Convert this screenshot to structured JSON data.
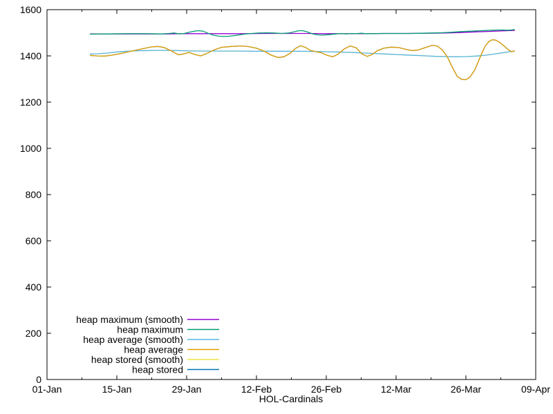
{
  "chart_data": {
    "type": "line",
    "title": "",
    "xlabel": "HOL-Cardinals",
    "ylabel": "",
    "x_unit": "days since 01-Jan",
    "xlim_days": [
      0,
      98
    ],
    "ylim": [
      0,
      1600
    ],
    "grid": false,
    "legend_position": "inside bottom-left",
    "y_ticks": [
      0,
      200,
      400,
      600,
      800,
      1000,
      1200,
      1400,
      1600
    ],
    "x_major_ticks": [
      {
        "day": 0,
        "label": "01-Jan"
      },
      {
        "day": 14,
        "label": "15-Jan"
      },
      {
        "day": 28,
        "label": "29-Jan"
      },
      {
        "day": 42,
        "label": "12-Feb"
      },
      {
        "day": 56,
        "label": "26-Feb"
      },
      {
        "day": 70,
        "label": "12-Mar"
      },
      {
        "day": 84,
        "label": "26-Mar"
      },
      {
        "day": 98,
        "label": "09-Apr"
      }
    ],
    "x_minor_ticks_days": [
      7,
      21,
      35,
      49,
      63,
      77,
      91
    ],
    "z_order": [
      4,
      5,
      2,
      3,
      0,
      1
    ],
    "series": [
      {
        "name": "heap maximum (smooth)",
        "color": "#9400d3",
        "points": [
          [
            8.6,
            1495
          ],
          [
            12,
            1495
          ],
          [
            16,
            1495
          ],
          [
            20,
            1495
          ],
          [
            24,
            1495
          ],
          [
            28,
            1496
          ],
          [
            32,
            1496
          ],
          [
            36,
            1496
          ],
          [
            40,
            1496
          ],
          [
            44,
            1497
          ],
          [
            48,
            1497
          ],
          [
            52,
            1497
          ],
          [
            56,
            1496
          ],
          [
            60,
            1496
          ],
          [
            64,
            1496
          ],
          [
            68,
            1497
          ],
          [
            72,
            1497
          ],
          [
            76,
            1498
          ],
          [
            80,
            1499
          ],
          [
            83,
            1501
          ],
          [
            86,
            1504
          ],
          [
            89,
            1506
          ],
          [
            91,
            1508
          ],
          [
            93.8,
            1510
          ]
        ]
      },
      {
        "name": "heap maximum",
        "color": "#009e73",
        "points": [
          [
            8.6,
            1494
          ],
          [
            12,
            1495
          ],
          [
            16,
            1496
          ],
          [
            20,
            1496
          ],
          [
            23,
            1495
          ],
          [
            24.5,
            1497
          ],
          [
            25.5,
            1499
          ],
          [
            26.5,
            1495
          ],
          [
            27.5,
            1497
          ],
          [
            28.5,
            1502
          ],
          [
            29.5,
            1507
          ],
          [
            30.4,
            1509
          ],
          [
            31.3,
            1507
          ],
          [
            32.3,
            1498
          ],
          [
            33.3,
            1490
          ],
          [
            34.5,
            1485
          ],
          [
            35.5,
            1484
          ],
          [
            36.5,
            1485
          ],
          [
            38,
            1489
          ],
          [
            39.5,
            1494
          ],
          [
            41,
            1497
          ],
          [
            42.5,
            1499
          ],
          [
            44,
            1500
          ],
          [
            45.5,
            1499
          ],
          [
            47,
            1497
          ],
          [
            48.5,
            1499
          ],
          [
            49.5,
            1504
          ],
          [
            50.5,
            1509
          ],
          [
            51.3,
            1509
          ],
          [
            52.3,
            1503
          ],
          [
            53.3,
            1495
          ],
          [
            54.3,
            1491
          ],
          [
            55.3,
            1490
          ],
          [
            56.5,
            1492
          ],
          [
            58,
            1495
          ],
          [
            59,
            1497
          ],
          [
            60,
            1495
          ],
          [
            61,
            1497
          ],
          [
            62,
            1496
          ],
          [
            63,
            1498
          ],
          [
            64,
            1496
          ],
          [
            65.5,
            1496
          ],
          [
            67,
            1497
          ],
          [
            69,
            1497
          ],
          [
            71,
            1497
          ],
          [
            73,
            1497
          ],
          [
            75,
            1498
          ],
          [
            77,
            1499
          ],
          [
            79,
            1500
          ],
          [
            81,
            1502
          ],
          [
            83,
            1505
          ],
          [
            85,
            1507
          ],
          [
            87,
            1509
          ],
          [
            89,
            1511
          ],
          [
            90.5,
            1512
          ],
          [
            91.5,
            1512
          ],
          [
            92.3,
            1511
          ],
          [
            93,
            1512
          ],
          [
            93.8,
            1514
          ]
        ]
      },
      {
        "name": "heap average (smooth)",
        "color": "#56b4e9",
        "points": [
          [
            8.6,
            1408
          ],
          [
            10,
            1409
          ],
          [
            12,
            1412
          ],
          [
            14,
            1417
          ],
          [
            16,
            1420
          ],
          [
            18,
            1422
          ],
          [
            20,
            1423
          ],
          [
            22,
            1424
          ],
          [
            24,
            1424
          ],
          [
            26,
            1423
          ],
          [
            28,
            1422
          ],
          [
            30,
            1421
          ],
          [
            34,
            1421
          ],
          [
            38,
            1421
          ],
          [
            42,
            1420
          ],
          [
            46,
            1420
          ],
          [
            50,
            1420
          ],
          [
            54,
            1419
          ],
          [
            56,
            1418
          ],
          [
            58,
            1417
          ],
          [
            60,
            1416
          ],
          [
            62,
            1414
          ],
          [
            64,
            1412
          ],
          [
            66,
            1410
          ],
          [
            68,
            1408
          ],
          [
            70,
            1406
          ],
          [
            72,
            1404
          ],
          [
            74,
            1402
          ],
          [
            76,
            1400
          ],
          [
            78,
            1398
          ],
          [
            80,
            1397
          ],
          [
            82,
            1396
          ],
          [
            84,
            1397
          ],
          [
            86,
            1399
          ],
          [
            88,
            1403
          ],
          [
            90,
            1409
          ],
          [
            91.5,
            1414
          ],
          [
            92.7,
            1418
          ],
          [
            93.8,
            1421
          ]
        ]
      },
      {
        "name": "heap average",
        "color": "#e69f00",
        "points": [
          [
            8.6,
            1402
          ],
          [
            10,
            1400
          ],
          [
            11.5,
            1399
          ],
          [
            13,
            1403
          ],
          [
            15,
            1411
          ],
          [
            17,
            1421
          ],
          [
            19,
            1430
          ],
          [
            21,
            1439
          ],
          [
            22.3,
            1441
          ],
          [
            23.5,
            1436
          ],
          [
            25,
            1421
          ],
          [
            26.3,
            1405
          ],
          [
            27.3,
            1408
          ],
          [
            28.5,
            1415
          ],
          [
            29.8,
            1405
          ],
          [
            30.8,
            1400
          ],
          [
            32,
            1410
          ],
          [
            33.5,
            1426
          ],
          [
            35,
            1437
          ],
          [
            37,
            1441
          ],
          [
            39,
            1443
          ],
          [
            40.5,
            1440
          ],
          [
            42,
            1433
          ],
          [
            43.5,
            1421
          ],
          [
            45,
            1403
          ],
          [
            46.3,
            1393
          ],
          [
            47.5,
            1396
          ],
          [
            48.8,
            1412
          ],
          [
            49.8,
            1432
          ],
          [
            50.8,
            1444
          ],
          [
            51.8,
            1437
          ],
          [
            52.8,
            1424
          ],
          [
            54,
            1418
          ],
          [
            55,
            1414
          ],
          [
            56.2,
            1402
          ],
          [
            57.3,
            1396
          ],
          [
            58.4,
            1408
          ],
          [
            59.6,
            1430
          ],
          [
            60.8,
            1443
          ],
          [
            62,
            1435
          ],
          [
            63.2,
            1408
          ],
          [
            64.2,
            1398
          ],
          [
            65.2,
            1406
          ],
          [
            66.2,
            1422
          ],
          [
            67.5,
            1433
          ],
          [
            69,
            1438
          ],
          [
            70.5,
            1436
          ],
          [
            72,
            1428
          ],
          [
            73.3,
            1423
          ],
          [
            74.5,
            1426
          ],
          [
            76,
            1437
          ],
          [
            77.3,
            1446
          ],
          [
            78.3,
            1442
          ],
          [
            79.3,
            1425
          ],
          [
            80.3,
            1395
          ],
          [
            81.3,
            1350
          ],
          [
            82.3,
            1310
          ],
          [
            83.2,
            1298
          ],
          [
            84,
            1297
          ],
          [
            84.8,
            1308
          ],
          [
            85.8,
            1340
          ],
          [
            86.8,
            1392
          ],
          [
            87.8,
            1440
          ],
          [
            88.6,
            1462
          ],
          [
            89.3,
            1470
          ],
          [
            90,
            1468
          ],
          [
            90.8,
            1458
          ],
          [
            91.8,
            1440
          ],
          [
            92.6,
            1425
          ],
          [
            93.2,
            1418
          ],
          [
            93.8,
            1422
          ]
        ]
      },
      {
        "name": "heap stored (smooth)",
        "color": "#f0e442",
        "points": [
          [
            8.6,
            1408
          ],
          [
            10,
            1409
          ],
          [
            12,
            1412
          ],
          [
            14,
            1417
          ],
          [
            16,
            1420
          ],
          [
            18,
            1422
          ],
          [
            20,
            1423
          ],
          [
            22,
            1424
          ],
          [
            24,
            1424
          ],
          [
            26,
            1423
          ],
          [
            28,
            1422
          ],
          [
            30,
            1421
          ],
          [
            34,
            1421
          ],
          [
            38,
            1421
          ],
          [
            42,
            1420
          ],
          [
            46,
            1420
          ],
          [
            50,
            1420
          ],
          [
            54,
            1419
          ],
          [
            56,
            1418
          ],
          [
            58,
            1417
          ],
          [
            60,
            1416
          ],
          [
            62,
            1414
          ],
          [
            64,
            1412
          ],
          [
            66,
            1410
          ],
          [
            68,
            1408
          ],
          [
            70,
            1406
          ],
          [
            72,
            1404
          ],
          [
            74,
            1402
          ],
          [
            76,
            1400
          ],
          [
            78,
            1398
          ],
          [
            80,
            1397
          ],
          [
            82,
            1396
          ],
          [
            84,
            1397
          ],
          [
            86,
            1399
          ],
          [
            88,
            1403
          ],
          [
            90,
            1409
          ],
          [
            91.5,
            1414
          ],
          [
            92.7,
            1418
          ],
          [
            93.8,
            1421
          ]
        ]
      },
      {
        "name": "heap stored",
        "color": "#0072b2",
        "points": [
          [
            8.6,
            1402
          ],
          [
            10,
            1400
          ],
          [
            11.5,
            1399
          ],
          [
            13,
            1403
          ],
          [
            15,
            1411
          ],
          [
            17,
            1421
          ],
          [
            19,
            1430
          ],
          [
            21,
            1439
          ],
          [
            22.3,
            1441
          ],
          [
            23.5,
            1436
          ],
          [
            25,
            1421
          ],
          [
            26.3,
            1405
          ],
          [
            27.3,
            1408
          ],
          [
            28.5,
            1415
          ],
          [
            29.8,
            1405
          ],
          [
            30.8,
            1400
          ],
          [
            32,
            1410
          ],
          [
            33.5,
            1426
          ],
          [
            35,
            1437
          ],
          [
            37,
            1441
          ],
          [
            39,
            1443
          ],
          [
            40.5,
            1440
          ],
          [
            42,
            1433
          ],
          [
            43.5,
            1421
          ],
          [
            45,
            1403
          ],
          [
            46.3,
            1393
          ],
          [
            47.5,
            1396
          ],
          [
            48.8,
            1412
          ],
          [
            49.8,
            1432
          ],
          [
            50.8,
            1444
          ],
          [
            51.8,
            1437
          ],
          [
            52.8,
            1424
          ],
          [
            54,
            1418
          ],
          [
            55,
            1414
          ],
          [
            56.2,
            1402
          ],
          [
            57.3,
            1396
          ],
          [
            58.4,
            1408
          ],
          [
            59.6,
            1430
          ],
          [
            60.8,
            1443
          ],
          [
            62,
            1435
          ],
          [
            63.2,
            1408
          ],
          [
            64.2,
            1398
          ],
          [
            65.2,
            1406
          ],
          [
            66.2,
            1422
          ],
          [
            67.5,
            1433
          ],
          [
            69,
            1438
          ],
          [
            70.5,
            1436
          ],
          [
            72,
            1428
          ],
          [
            73.3,
            1423
          ],
          [
            74.5,
            1426
          ],
          [
            76,
            1437
          ],
          [
            77.3,
            1446
          ],
          [
            78.3,
            1442
          ],
          [
            79.3,
            1425
          ],
          [
            80.3,
            1395
          ],
          [
            81.3,
            1350
          ],
          [
            82.3,
            1310
          ],
          [
            83.2,
            1298
          ],
          [
            84,
            1297
          ],
          [
            84.8,
            1308
          ],
          [
            85.8,
            1340
          ],
          [
            86.8,
            1392
          ],
          [
            87.8,
            1440
          ],
          [
            88.6,
            1462
          ],
          [
            89.3,
            1470
          ],
          [
            90,
            1468
          ],
          [
            90.8,
            1458
          ],
          [
            91.8,
            1440
          ],
          [
            92.6,
            1425
          ],
          [
            93.2,
            1418
          ],
          [
            93.8,
            1422
          ]
        ]
      }
    ]
  }
}
